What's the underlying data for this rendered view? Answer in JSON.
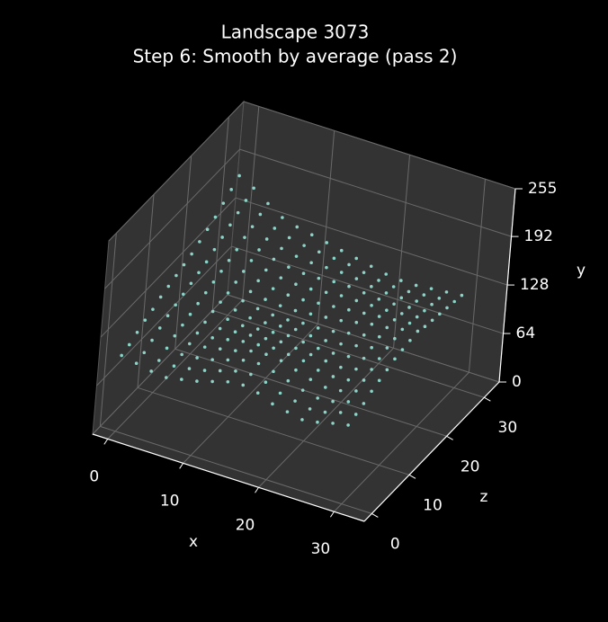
{
  "chart_data": {
    "type": "scatter3d",
    "title": "Landscape 3073",
    "subtitle": "Step 6: Smooth by average (pass 2)",
    "xlabel": "x",
    "ylabel": "y",
    "zlabel": "z",
    "color": "#8dd3c7",
    "xlim": [
      -2,
      34
    ],
    "zlim": [
      -2,
      34
    ],
    "ylim": [
      0,
      255
    ],
    "xticks": [
      0,
      10,
      20,
      30
    ],
    "zticks": [
      0,
      10,
      20,
      30
    ],
    "yticks": [
      0,
      64,
      128,
      192,
      255
    ],
    "grid": true,
    "x": [
      0,
      2,
      4,
      6,
      8,
      10,
      12,
      14,
      16,
      18,
      20,
      22,
      24,
      26,
      28,
      30
    ],
    "z": [
      0,
      2,
      4,
      6,
      8,
      10,
      12,
      14,
      16,
      18,
      20,
      22,
      24,
      26,
      28,
      30
    ],
    "y": [
      [
        100,
        96,
        92,
        90,
        94,
        98,
        104,
        110,
        112,
        108,
        100,
        96,
        92,
        95,
        100,
        104
      ],
      [
        104,
        100,
        96,
        95,
        98,
        102,
        108,
        114,
        116,
        112,
        104,
        100,
        96,
        98,
        104,
        108
      ],
      [
        110,
        106,
        102,
        100,
        102,
        106,
        112,
        118,
        120,
        116,
        110,
        104,
        100,
        102,
        108,
        112
      ],
      [
        116,
        112,
        108,
        104,
        106,
        110,
        114,
        120,
        122,
        120,
        114,
        108,
        104,
        106,
        112,
        118
      ],
      [
        120,
        118,
        112,
        108,
        108,
        112,
        116,
        118,
        120,
        118,
        116,
        110,
        108,
        110,
        116,
        122
      ],
      [
        126,
        122,
        116,
        112,
        110,
        112,
        114,
        116,
        118,
        116,
        114,
        112,
        110,
        114,
        120,
        126
      ],
      [
        130,
        126,
        120,
        116,
        112,
        110,
        112,
        114,
        116,
        114,
        112,
        112,
        114,
        118,
        124,
        130
      ],
      [
        134,
        130,
        124,
        118,
        114,
        110,
        110,
        112,
        114,
        112,
        112,
        114,
        118,
        122,
        128,
        132
      ],
      [
        138,
        134,
        128,
        120,
        116,
        112,
        110,
        110,
        112,
        112,
        114,
        118,
        122,
        126,
        130,
        134
      ],
      [
        142,
        138,
        132,
        124,
        118,
        114,
        112,
        112,
        114,
        116,
        118,
        122,
        126,
        128,
        132,
        136
      ],
      [
        148,
        144,
        136,
        128,
        122,
        118,
        116,
        116,
        118,
        120,
        122,
        124,
        126,
        128,
        130,
        132
      ],
      [
        154,
        150,
        140,
        132,
        126,
        122,
        120,
        120,
        122,
        124,
        124,
        124,
        124,
        126,
        128,
        130
      ],
      [
        160,
        156,
        146,
        136,
        130,
        126,
        124,
        124,
        126,
        126,
        124,
        122,
        122,
        124,
        126,
        128
      ],
      [
        168,
        162,
        150,
        140,
        134,
        130,
        128,
        128,
        128,
        126,
        122,
        120,
        120,
        122,
        124,
        126
      ],
      [
        176,
        168,
        156,
        144,
        138,
        134,
        132,
        130,
        128,
        124,
        120,
        118,
        118,
        120,
        122,
        124
      ],
      [
        184,
        174,
        160,
        148,
        142,
        138,
        134,
        130,
        126,
        122,
        118,
        116,
        116,
        118,
        120,
        122
      ]
    ]
  }
}
